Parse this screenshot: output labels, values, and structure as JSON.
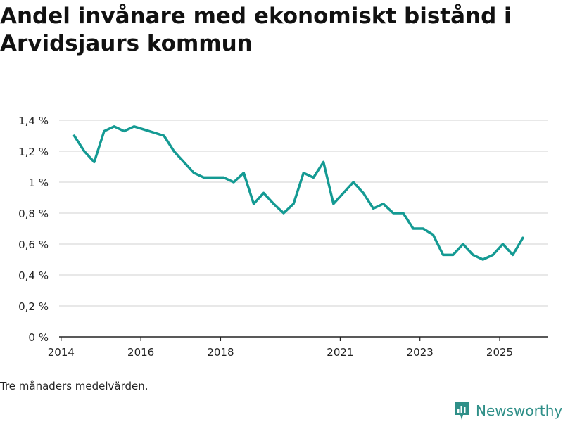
{
  "title": "Andel invånare med ekonomiskt bistånd i Arvidsjaurs kommun",
  "note": "Tre månaders medelvärden.",
  "brand": {
    "name": "Newsworthy",
    "icon": "newsworthy-logo-icon"
  },
  "colors": {
    "line": "#149a93",
    "grid": "#d9d9d9",
    "axis": "#222222",
    "brand": "#2f8f88"
  },
  "chart_data": {
    "type": "line",
    "title": "Andel invånare med ekonomiskt bistånd i Arvidsjaurs kommun",
    "xlabel": "",
    "ylabel": "",
    "xlim": [
      2013.95,
      2026.2
    ],
    "ylim": [
      0,
      1.4
    ],
    "yticks": [
      {
        "value": 0,
        "label": "0 %"
      },
      {
        "value": 0.2,
        "label": "0,2 %"
      },
      {
        "value": 0.4,
        "label": "0,4 %"
      },
      {
        "value": 0.6,
        "label": "0,6 %"
      },
      {
        "value": 0.8,
        "label": "0,8 %"
      },
      {
        "value": 1.0,
        "label": "1 %"
      },
      {
        "value": 1.2,
        "label": "1,2 %"
      },
      {
        "value": 1.4,
        "label": "1,4 %"
      }
    ],
    "xticks": [
      {
        "value": 2014,
        "label": "2014"
      },
      {
        "value": 2016,
        "label": "2016"
      },
      {
        "value": 2018,
        "label": "2018"
      },
      {
        "value": 2021,
        "label": "2021"
      },
      {
        "value": 2023,
        "label": "2023"
      },
      {
        "value": 2025,
        "label": "2025"
      }
    ],
    "series": [
      {
        "name": "Andel invånare med ekonomiskt bistånd",
        "x": [
          2014.33,
          2014.58,
          2014.83,
          2015.08,
          2015.33,
          2015.58,
          2015.83,
          2016.08,
          2016.33,
          2016.58,
          2016.83,
          2017.08,
          2017.33,
          2017.58,
          2017.83,
          2018.08,
          2018.33,
          2018.58,
          2018.83,
          2019.08,
          2019.33,
          2019.58,
          2019.83,
          2020.08,
          2020.33,
          2020.58,
          2020.83,
          2021.08,
          2021.33,
          2021.58,
          2021.83,
          2022.08,
          2022.33,
          2022.58,
          2022.83,
          2023.08,
          2023.33,
          2023.58,
          2023.83,
          2024.08,
          2024.33,
          2024.58,
          2024.83,
          2025.08,
          2025.33,
          2025.58
        ],
        "values": [
          1.3,
          1.2,
          1.13,
          1.33,
          1.36,
          1.33,
          1.36,
          1.34,
          1.32,
          1.3,
          1.2,
          1.13,
          1.06,
          1.03,
          1.03,
          1.03,
          1.0,
          1.06,
          0.86,
          0.93,
          0.86,
          0.8,
          0.86,
          1.06,
          1.03,
          1.13,
          0.86,
          0.93,
          1.0,
          0.93,
          0.83,
          0.86,
          0.8,
          0.8,
          0.7,
          0.7,
          0.66,
          0.53,
          0.53,
          0.6,
          0.53,
          0.5,
          0.53,
          0.6,
          0.53,
          0.64
        ]
      }
    ]
  }
}
